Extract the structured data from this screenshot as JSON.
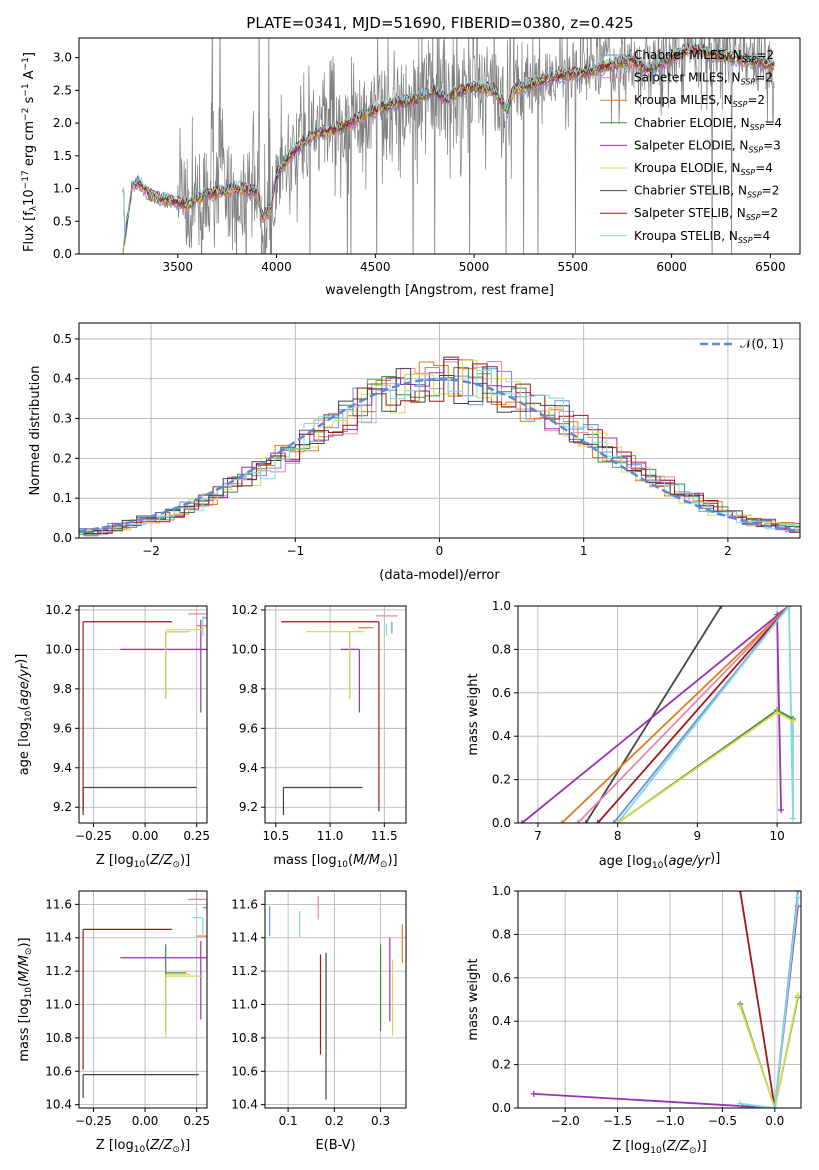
{
  "figure": {
    "title": "PLATE=0341, MJD=51690, FIBERID=0380, z=0.425"
  },
  "colors": {
    "Chabrier MILES": "#6d8fe0",
    "Salpeter MILES": "#e888a8",
    "Kroupa MILES": "#e07b20",
    "Chabrier ELODIE": "#3e8a3e",
    "Salpeter ELODIE": "#9b30b8",
    "Kroupa ELODIE": "#d9d952",
    "Chabrier STELIB": "#444444",
    "Salpeter STELIB": "#a01818",
    "Kroupa STELIB": "#7fdada",
    "observed": "#808080",
    "normal": "#5b8bd6"
  },
  "chart_data": [
    {
      "id": "spectrum",
      "type": "line",
      "xlabel": "wavelength [Angstrom, rest frame]",
      "ylabel": "Flux [f_λ 10^-17 erg cm^-2 s^-1 A^-1]",
      "xlim": [
        3000,
        6650
      ],
      "ylim": [
        0,
        3.3
      ],
      "xticks": [
        "3500",
        "4000",
        "4500",
        "5000",
        "5500",
        "6000",
        "6500"
      ],
      "yticks": [
        "0.0",
        "0.5",
        "1.0",
        "1.5",
        "2.0",
        "2.5",
        "3.0"
      ],
      "legend_position": "right",
      "legend": [
        {
          "label": "Chabrier MILES, N_SSP=2",
          "prefix": "Chabrier MILES, N",
          "sub": "SSP",
          "suffix": "=2",
          "series": "Chabrier MILES"
        },
        {
          "label": "Salpeter MILES, N_SSP=2",
          "prefix": "Salpeter MILES, N",
          "sub": "SSP",
          "suffix": "=2",
          "series": "Salpeter MILES"
        },
        {
          "label": "Kroupa MILES, N_SSP=2",
          "prefix": "Kroupa MILES, N",
          "sub": "SSP",
          "suffix": "=2",
          "series": "Kroupa MILES"
        },
        {
          "label": "Chabrier ELODIE, N_SSP=4",
          "prefix": "Chabrier ELODIE, N",
          "sub": "SSP",
          "suffix": "=4",
          "series": "Chabrier ELODIE"
        },
        {
          "label": "Salpeter ELODIE, N_SSP=3",
          "prefix": "Salpeter ELODIE, N",
          "sub": "SSP",
          "suffix": "=3",
          "series": "Salpeter ELODIE"
        },
        {
          "label": "Kroupa ELODIE, N_SSP=4",
          "prefix": "Kroupa ELODIE, N",
          "sub": "SSP",
          "suffix": "=4",
          "series": "Kroupa ELODIE"
        },
        {
          "label": "Chabrier STELIB, N_SSP=2",
          "prefix": "Chabrier STELIB, N",
          "sub": "SSP",
          "suffix": "=2",
          "series": "Chabrier STELIB"
        },
        {
          "label": "Salpeter STELIB, N_SSP=2",
          "prefix": "Salpeter STELIB, N",
          "sub": "SSP",
          "suffix": "=2",
          "series": "Salpeter STELIB"
        },
        {
          "label": "Kroupa STELIB, N_SSP=4",
          "prefix": "Kroupa STELIB, N",
          "sub": "SSP",
          "suffix": "=4",
          "series": "Kroupa STELIB"
        }
      ],
      "model_continuum": {
        "x": [
          3220,
          3270,
          3300,
          3360,
          3400,
          3500,
          3550,
          3600,
          3700,
          3800,
          3900,
          3930,
          3970,
          4000,
          4050,
          4100,
          4200,
          4300,
          4400,
          4500,
          4600,
          4700,
          4800,
          4860,
          4900,
          5000,
          5100,
          5170,
          5200,
          5300,
          5400,
          5500,
          5600,
          5700,
          5800,
          5890,
          6000,
          6100,
          6200,
          6300,
          6400,
          6500
        ],
        "y": [
          0.0,
          1.05,
          1.1,
          0.9,
          0.85,
          0.8,
          0.75,
          0.85,
          0.95,
          1.0,
          0.95,
          0.55,
          0.7,
          1.2,
          1.45,
          1.6,
          1.85,
          1.9,
          2.05,
          2.2,
          2.3,
          2.35,
          2.5,
          2.35,
          2.45,
          2.55,
          2.5,
          2.2,
          2.5,
          2.6,
          2.7,
          2.75,
          2.8,
          2.9,
          2.95,
          2.8,
          3.0,
          3.15,
          3.05,
          3.0,
          2.95,
          2.9
        ]
      },
      "observed_present": true
    },
    {
      "id": "residuals",
      "type": "histogram",
      "xlabel": "(data-model)/error",
      "ylabel": "Normed distribution",
      "xlim": [
        -2.5,
        2.5
      ],
      "ylim": [
        0,
        0.54
      ],
      "xticks": [
        "−2",
        "−1",
        "0",
        "1",
        "2"
      ],
      "yticks": [
        "0.0",
        "0.1",
        "0.2",
        "0.3",
        "0.4",
        "0.5"
      ],
      "legend_position": "top-right",
      "legend": [
        "𝒩(0, 1)"
      ],
      "reference_curve": "standard normal density",
      "bin_width": 0.1
    },
    {
      "id": "age-vs-Z",
      "type": "scatter",
      "xlabel": "Z [log10(Z/Z⊙)]",
      "ylabel": "age [log10(age/yr)]",
      "xlim": [
        -0.32,
        0.3
      ],
      "ylim": [
        9.12,
        10.22
      ],
      "xticks": [
        "−0.25",
        "0.00",
        "0.25"
      ],
      "yticks": [
        "9.2",
        "9.4",
        "9.6",
        "9.8",
        "10.0",
        "10.2"
      ],
      "points": [
        {
          "series": "Chabrier STELIB",
          "x": -0.3,
          "y": 9.3,
          "xerr": [
            0.0,
            0.55
          ],
          "yerr": [
            0.14,
            0.0
          ]
        },
        {
          "series": "Salpeter STELIB",
          "x": -0.3,
          "y": 10.14,
          "xerr": [
            0.0,
            0.43
          ],
          "yerr": [
            0.96,
            0.0
          ]
        },
        {
          "series": "Salpeter ELODIE",
          "x": 0.1,
          "y": 10.0,
          "xerr": [
            0.22,
            0.2
          ],
          "yerr": [
            0.0,
            0.0
          ]
        },
        {
          "series": "Salpeter ELODIE",
          "x": 0.27,
          "y": 10.05,
          "xerr": [
            0.0,
            0.0
          ],
          "yerr": [
            0.37,
            0.1
          ]
        },
        {
          "series": "Chabrier ELODIE",
          "x": 0.1,
          "y": 10.09,
          "xerr": [
            0.0,
            0.1
          ],
          "yerr": [
            0.34,
            0.0
          ]
        },
        {
          "series": "Kroupa ELODIE",
          "x": 0.1,
          "y": 10.09,
          "xerr": [
            0.0,
            0.12
          ],
          "yerr": [
            0.34,
            0.0
          ]
        },
        {
          "series": "Kroupa ELODIE",
          "x": 0.2,
          "y": 10.1,
          "xerr": [
            0.1,
            0.08
          ],
          "yerr": [
            0.0,
            0.0
          ]
        },
        {
          "series": "Salpeter MILES",
          "x": 0.3,
          "y": 10.18,
          "xerr": [
            0.09,
            0.0
          ],
          "yerr": [
            0.0,
            0.0
          ]
        },
        {
          "series": "Kroupa MILES",
          "x": 0.3,
          "y": 10.12,
          "xerr": [
            0.05,
            0.0
          ],
          "yerr": [
            0.0,
            0.0
          ]
        },
        {
          "series": "Chabrier MILES",
          "x": 0.3,
          "y": 10.16,
          "xerr": [
            0.02,
            0.0
          ],
          "yerr": [
            0.0,
            0.0
          ]
        },
        {
          "series": "Kroupa STELIB",
          "x": 0.28,
          "y": 10.17,
          "xerr": [
            0.0,
            0.0
          ],
          "yerr": [
            0.1,
            0.0
          ]
        }
      ]
    },
    {
      "id": "age-vs-mass",
      "type": "scatter",
      "xlabel": "mass [log10(M/M⊙)]",
      "ylabel": "",
      "xlim": [
        10.4,
        11.7
      ],
      "ylim": [
        9.12,
        10.22
      ],
      "xticks": [
        "10.5",
        "11.0",
        "11.5"
      ],
      "yticks": [
        "9.2",
        "9.4",
        "9.6",
        "9.8",
        "10.0",
        "10.2"
      ],
      "points": [
        {
          "series": "Chabrier STELIB",
          "x": 10.57,
          "y": 9.3,
          "xerr": [
            0.0,
            0.73
          ],
          "yerr": [
            0.14,
            0.0
          ]
        },
        {
          "series": "Salpeter STELIB",
          "x": 11.45,
          "y": 10.14,
          "xerr": [
            0.9,
            0.0
          ],
          "yerr": [
            0.96,
            0.0
          ]
        },
        {
          "series": "Salpeter ELODIE",
          "x": 11.27,
          "y": 10.0,
          "xerr": [
            0.17,
            0.0
          ],
          "yerr": [
            0.32,
            0.0
          ]
        },
        {
          "series": "Chabrier ELODIE",
          "x": 11.18,
          "y": 10.09,
          "xerr": [
            0.0,
            0.0
          ],
          "yerr": [
            0.34,
            0.0
          ]
        },
        {
          "series": "Kroupa ELODIE",
          "x": 11.18,
          "y": 10.09,
          "xerr": [
            0.4,
            0.13
          ],
          "yerr": [
            0.34,
            0.0
          ]
        },
        {
          "series": "Salpeter MILES",
          "x": 11.62,
          "y": 10.17,
          "xerr": [
            0.2,
            0.0
          ],
          "yerr": [
            0.0,
            0.0
          ]
        },
        {
          "series": "Kroupa MILES",
          "x": 11.4,
          "y": 10.11,
          "xerr": [
            0.14,
            0.0
          ],
          "yerr": [
            0.0,
            0.0
          ]
        },
        {
          "series": "Chabrier MILES",
          "x": 11.57,
          "y": 10.14,
          "xerr": [
            0.0,
            0.0
          ],
          "yerr": [
            0.06,
            0.0
          ]
        },
        {
          "series": "Kroupa STELIB",
          "x": 11.52,
          "y": 10.13,
          "xerr": [
            0.0,
            0.0
          ],
          "yerr": [
            0.06,
            0.0
          ]
        }
      ]
    },
    {
      "id": "mass-weight-vs-age",
      "type": "line",
      "xlabel": "age [log10(age/yr)]",
      "ylabel": "mass weight",
      "xlim": [
        6.75,
        10.3
      ],
      "ylim": [
        0,
        1
      ],
      "xticks": [
        "7",
        "8",
        "9",
        "10"
      ],
      "yticks": [
        "0.0",
        "0.2",
        "0.4",
        "0.6",
        "0.8",
        "1.0"
      ],
      "series": [
        {
          "name": "Chabrier STELIB",
          "x": [
            7.6,
            9.3
          ],
          "y": [
            0.0,
            1.0
          ]
        },
        {
          "name": "Salpeter ELODIE",
          "x": [
            6.8,
            10.15,
            10.0,
            10.05
          ],
          "y": [
            0.0,
            1.0,
            0.96,
            0.06
          ]
        },
        {
          "name": "Kroupa MILES",
          "x": [
            7.3,
            10.15
          ],
          "y": [
            0.0,
            1.0
          ]
        },
        {
          "name": "Salpeter MILES",
          "x": [
            7.5,
            10.15
          ],
          "y": [
            0.0,
            1.0
          ]
        },
        {
          "name": "Salpeter STELIB",
          "x": [
            7.75,
            10.15
          ],
          "y": [
            0.0,
            1.0
          ]
        },
        {
          "name": "Chabrier MILES",
          "x": [
            7.95,
            10.15
          ],
          "y": [
            0.0,
            1.0
          ]
        },
        {
          "name": "Kroupa STELIB",
          "x": [
            8.0,
            10.15,
            10.2,
            10.2
          ],
          "y": [
            0.0,
            1.0,
            0.02,
            0.48
          ]
        },
        {
          "name": "Chabrier ELODIE",
          "x": [
            8.0,
            10.0,
            10.2
          ],
          "y": [
            0.0,
            0.52,
            0.48
          ]
        },
        {
          "name": "Kroupa ELODIE",
          "x": [
            8.0,
            10.0,
            10.2
          ],
          "y": [
            0.0,
            0.51,
            0.47
          ]
        }
      ]
    },
    {
      "id": "mass-vs-Z",
      "type": "scatter",
      "xlabel": "Z [log10(Z/Z⊙)]",
      "ylabel": "mass [log10(M/M⊙)]",
      "xlim": [
        -0.32,
        0.3
      ],
      "ylim": [
        10.38,
        11.68
      ],
      "xticks": [
        "−0.25",
        "0.00",
        "0.25"
      ],
      "yticks": [
        "10.4",
        "10.6",
        "10.8",
        "11.0",
        "11.2",
        "11.4",
        "11.6"
      ],
      "points": [
        {
          "series": "Chabrier STELIB",
          "x": -0.3,
          "y": 10.58,
          "xerr": [
            0.0,
            0.56
          ],
          "yerr": [
            0.14,
            0.0
          ]
        },
        {
          "series": "Salpeter STELIB",
          "x": -0.3,
          "y": 11.45,
          "xerr": [
            0.0,
            0.43
          ],
          "yerr": [
            0.84,
            0.0
          ]
        },
        {
          "series": "Salpeter ELODIE",
          "x": 0.1,
          "y": 11.28,
          "xerr": [
            0.22,
            0.2
          ],
          "yerr": [
            0.0,
            0.0
          ]
        },
        {
          "series": "Salpeter ELODIE",
          "x": 0.27,
          "y": 11.28,
          "xerr": [
            0.0,
            0.0
          ],
          "yerr": [
            0.37,
            0.1
          ]
        },
        {
          "series": "Chabrier ELODIE",
          "x": 0.1,
          "y": 11.19,
          "xerr": [
            0.0,
            0.1
          ],
          "yerr": [
            0.35,
            0.17
          ]
        },
        {
          "series": "Kroupa ELODIE",
          "x": 0.1,
          "y": 11.18,
          "xerr": [
            0.0,
            0.12
          ],
          "yerr": [
            0.38,
            0.0
          ]
        },
        {
          "series": "Kroupa ELODIE",
          "x": 0.2,
          "y": 11.17,
          "xerr": [
            0.1,
            0.08
          ],
          "yerr": [
            0.0,
            0.0
          ]
        },
        {
          "series": "Salpeter MILES",
          "x": 0.3,
          "y": 11.63,
          "xerr": [
            0.09,
            0.0
          ],
          "yerr": [
            0.0,
            0.0
          ]
        },
        {
          "series": "Kroupa MILES",
          "x": 0.3,
          "y": 11.41,
          "xerr": [
            0.05,
            0.0
          ],
          "yerr": [
            0.2,
            0.0
          ]
        },
        {
          "series": "Chabrier MILES",
          "x": 0.3,
          "y": 11.58,
          "xerr": [
            0.02,
            0.0
          ],
          "yerr": [
            0.0,
            0.0
          ]
        },
        {
          "series": "Kroupa STELIB",
          "x": 0.28,
          "y": 11.52,
          "xerr": [
            0.05,
            0.0
          ],
          "yerr": [
            0.1,
            0.0
          ]
        }
      ]
    },
    {
      "id": "mass-vs-EBV",
      "type": "scatter",
      "xlabel": "E(B-V)",
      "ylabel": "",
      "xlim": [
        0.05,
        0.355
      ],
      "ylim": [
        10.38,
        11.68
      ],
      "xticks": [
        "0.1",
        "0.2",
        "0.3"
      ],
      "yticks": [
        "10.4",
        "10.6",
        "10.8",
        "11.0",
        "11.2",
        "11.4",
        "11.6"
      ],
      "points": [
        {
          "series": "Chabrier MILES",
          "x": 0.06,
          "y": 11.5,
          "yerr": [
            0.09,
            0.09
          ]
        },
        {
          "series": "Kroupa STELIB",
          "x": 0.125,
          "y": 11.48,
          "yerr": [
            0.08,
            0.08
          ]
        },
        {
          "series": "Salpeter MILES",
          "x": 0.165,
          "y": 11.58,
          "yerr": [
            0.07,
            0.07
          ]
        },
        {
          "series": "Salpeter STELIB",
          "x": 0.17,
          "y": 11.0,
          "yerr": [
            0.3,
            0.3
          ]
        },
        {
          "series": "Chabrier STELIB",
          "x": 0.182,
          "y": 10.86,
          "yerr": [
            0.43,
            0.45
          ]
        },
        {
          "series": "Chabrier ELODIE",
          "x": 0.3,
          "y": 11.1,
          "yerr": [
            0.26,
            0.26
          ]
        },
        {
          "series": "Salpeter ELODIE",
          "x": 0.32,
          "y": 11.15,
          "yerr": [
            0.25,
            0.25
          ]
        },
        {
          "series": "Kroupa ELODIE",
          "x": 0.326,
          "y": 11.04,
          "yerr": [
            0.23,
            0.23
          ]
        },
        {
          "series": "Kroupa MILES",
          "x": 0.347,
          "y": 11.36,
          "yerr": [
            0.11,
            0.12
          ]
        }
      ]
    },
    {
      "id": "mass-weight-vs-Z",
      "type": "line",
      "xlabel": "Z [log10(Z/Z⊙)]",
      "ylabel": "mass weight",
      "xlim": [
        -2.45,
        0.25
      ],
      "ylim": [
        0,
        1
      ],
      "xticks": [
        "−2.0",
        "−1.5",
        "−1.0",
        "−0.5",
        "0.0"
      ],
      "yticks": [
        "0.0",
        "0.2",
        "0.4",
        "0.6",
        "0.8",
        "1.0"
      ],
      "series": [
        {
          "name": "Salpeter ELODIE",
          "x": [
            -2.3,
            0.0,
            0.22
          ],
          "y": [
            0.065,
            0.0,
            0.93
          ]
        },
        {
          "name": "Salpeter STELIB",
          "x": [
            -0.33,
            0.0
          ],
          "y": [
            1.0,
            0.0
          ]
        },
        {
          "name": "Chabrier MILES",
          "x": [
            -0.33,
            0.0,
            0.22
          ],
          "y": [
            0.0,
            0.0,
            1.0
          ]
        },
        {
          "name": "Chabrier ELODIE",
          "x": [
            -0.33,
            0.0,
            0.22
          ],
          "y": [
            0.48,
            0.0,
            0.51
          ]
        },
        {
          "name": "Kroupa ELODIE",
          "x": [
            -0.33,
            0.0,
            0.22
          ],
          "y": [
            0.47,
            0.0,
            0.52
          ]
        },
        {
          "name": "Kroupa STELIB",
          "x": [
            -0.33,
            0.0,
            0.22
          ],
          "y": [
            0.02,
            0.0,
            0.97
          ]
        }
      ]
    }
  ]
}
